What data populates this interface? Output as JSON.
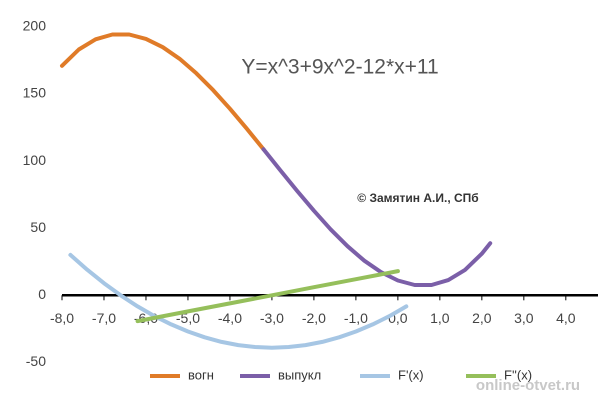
{
  "chart_data": {
    "type": "line",
    "title": "Y=x^3+9x^2-12*x+11",
    "annotation": "© Замятин А.И., СПб",
    "watermark": "online-otvet.ru",
    "xlim": [
      -8,
      4.6
    ],
    "ylim": [
      -78,
      220
    ],
    "xticks": [
      {
        "value": -8,
        "label": "-8,0"
      },
      {
        "value": -7,
        "label": "-7,0"
      },
      {
        "value": -6,
        "label": "-6,0"
      },
      {
        "value": -5,
        "label": "-5,0"
      },
      {
        "value": -4,
        "label": "-4,0"
      },
      {
        "value": -3,
        "label": "-3,0"
      },
      {
        "value": -2,
        "label": "-2,0"
      },
      {
        "value": -1,
        "label": "-1,0"
      },
      {
        "value": 0,
        "label": "0,0"
      },
      {
        "value": 1,
        "label": "1,0"
      },
      {
        "value": 2,
        "label": "2,0"
      },
      {
        "value": 3,
        "label": "3,0"
      },
      {
        "value": 4,
        "label": "4,0"
      }
    ],
    "yticks": [
      -50,
      0,
      50,
      100,
      150,
      200
    ],
    "series": [
      {
        "name": "вогн",
        "color": "#e07b28",
        "x": [
          -8,
          -7.6,
          -7.2,
          -6.8,
          -6.4,
          -6.0,
          -5.6,
          -5.2,
          -4.8,
          -4.4,
          -4.0,
          -3.6,
          -3.2
        ],
        "values": [
          171,
          183.1,
          190.7,
          194.3,
          194.3,
          191,
          184.8,
          176.2,
          165.4,
          152.9,
          139,
          124.2,
          108.8
        ]
      },
      {
        "name": "выпукл",
        "color": "#7b5fa8",
        "x": [
          -3.2,
          -2.8,
          -2.4,
          -2.0,
          -1.6,
          -1.2,
          -0.8,
          -0.4,
          0,
          0.4,
          0.8,
          1.2,
          1.6,
          2.0,
          2.2
        ],
        "values": [
          108.8,
          93.2,
          77.8,
          63,
          49.1,
          36.6,
          25.8,
          17.2,
          11,
          7.7,
          7.7,
          11.3,
          18.9,
          31,
          38.8
        ]
      },
      {
        "name": "F'(x)",
        "color": "#a6c6e4",
        "x": [
          -7.8,
          -7.4,
          -7.0,
          -6.6,
          -6.2,
          -5.8,
          -5.4,
          -5.0,
          -4.6,
          -4.2,
          -3.8,
          -3.4,
          -3.0,
          -2.6,
          -2.2,
          -1.8,
          -1.4,
          -1.0,
          -0.6,
          -0.2,
          0.2
        ],
        "values": [
          30.1,
          19.1,
          9,
          -0.1,
          -8.3,
          -15.5,
          -21.7,
          -27,
          -31.3,
          -34.7,
          -37.1,
          -38.5,
          -39,
          -38.5,
          -37.1,
          -34.7,
          -31.3,
          -27,
          -21.7,
          -15.5,
          -8.3
        ]
      },
      {
        "name": "F''(x)",
        "color": "#95bf5b",
        "x": [
          -6.2,
          -5.0,
          -4.0,
          -3.0,
          -2.0,
          -1.0,
          0.0
        ],
        "values": [
          -19.2,
          -12,
          -6,
          0,
          6,
          12,
          18
        ]
      }
    ]
  }
}
